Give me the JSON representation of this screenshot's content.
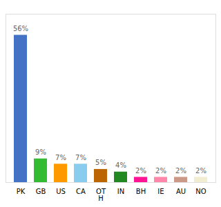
{
  "chart_data": {
    "type": "bar",
    "categories": [
      "PK",
      "GB",
      "US",
      "CA",
      "OT\nH",
      "IN",
      "BH",
      "IE",
      "AU",
      "NO"
    ],
    "values": [
      56,
      9,
      7,
      7,
      5,
      4,
      2,
      2,
      2,
      2
    ],
    "value_labels": [
      "56%",
      "9%",
      "7%",
      "7%",
      "5%",
      "4%",
      "2%",
      "2%",
      "2%",
      "2%"
    ],
    "colors": [
      "#4472C4",
      "#33BB33",
      "#FF9900",
      "#88CCEE",
      "#BB6600",
      "#228822",
      "#FF1493",
      "#FF88AA",
      "#CC9988",
      "#F0EDD0"
    ],
    "ylim": [
      0,
      64
    ],
    "grid": false,
    "data_labels": true,
    "tick_labels": "x"
  }
}
